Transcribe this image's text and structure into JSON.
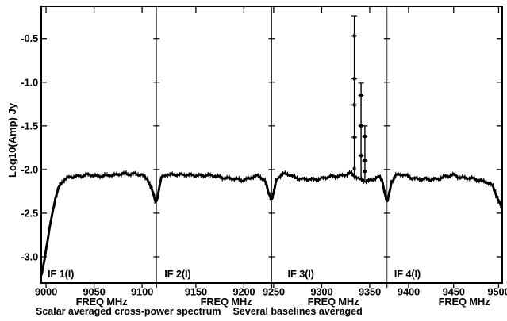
{
  "app": {
    "background": "#ffffff",
    "foreground": "#000000"
  },
  "caption": {
    "left": "Scalar averaged cross-power spectrum",
    "right": "Several baselines averaged"
  },
  "chart_data": {
    "type": "line",
    "title": "",
    "ylabel": "Log10(Amp) Jy",
    "xlabel": "FREQ MHz",
    "ylim": [
      -3.3,
      -0.13
    ],
    "yticks": [
      -0.5,
      -1.0,
      -1.5,
      -2.0,
      -2.5,
      -3.0
    ],
    "grid": false,
    "legend": "none",
    "line_color": "#000000",
    "axis_color": "#000000",
    "continuum_level": -2.08,
    "panels": [
      {
        "label": "IF 1(I)",
        "xlabel": "FREQ MHz",
        "xrange": [
          8995,
          9115
        ],
        "xticks": [
          9000,
          9050,
          9100
        ],
        "curve": [
          [
            8995,
            -3.22
          ],
          [
            8996,
            -3.18
          ],
          [
            8998,
            -3.05
          ],
          [
            9000,
            -2.92
          ],
          [
            9002,
            -2.8
          ],
          [
            9004,
            -2.66
          ],
          [
            9006,
            -2.53
          ],
          [
            9008,
            -2.41
          ],
          [
            9010,
            -2.31
          ],
          [
            9013,
            -2.21
          ],
          [
            9016,
            -2.15
          ],
          [
            9020,
            -2.11
          ],
          [
            9026,
            -2.09
          ],
          [
            9034,
            -2.07
          ],
          [
            9043,
            -2.06
          ],
          [
            9052,
            -2.08
          ],
          [
            9062,
            -2.06
          ],
          [
            9072,
            -2.07
          ],
          [
            9082,
            -2.04
          ],
          [
            9092,
            -2.05
          ],
          [
            9100,
            -2.07
          ],
          [
            9106,
            -2.11
          ],
          [
            9110,
            -2.22
          ],
          [
            9113,
            -2.33
          ],
          [
            9115,
            -2.38
          ]
        ]
      },
      {
        "label": "IF 2(I)",
        "xlabel": "FREQ MHz",
        "xrange": [
          9109,
          9229
        ],
        "xticks": [
          9150,
          9200
        ],
        "curve": [
          [
            9109,
            -2.36
          ],
          [
            9111,
            -2.25
          ],
          [
            9114,
            -2.1
          ],
          [
            9120,
            -2.06
          ],
          [
            9130,
            -2.05
          ],
          [
            9140,
            -2.07
          ],
          [
            9152,
            -2.06
          ],
          [
            9163,
            -2.07
          ],
          [
            9175,
            -2.08
          ],
          [
            9188,
            -2.11
          ],
          [
            9198,
            -2.12
          ],
          [
            9207,
            -2.09
          ],
          [
            9216,
            -2.08
          ],
          [
            9222,
            -2.13
          ],
          [
            9226,
            -2.27
          ],
          [
            9229,
            -2.33
          ]
        ]
      },
      {
        "label": "IF 3(I)",
        "xlabel": "FREQ MHz",
        "xrange": [
          9248,
          9368
        ],
        "xticks": [
          9250,
          9300,
          9350
        ],
        "curve": [
          [
            9248,
            -2.33
          ],
          [
            9250,
            -2.27
          ],
          [
            9253,
            -2.12
          ],
          [
            9258,
            -2.06
          ],
          [
            9266,
            -2.05
          ],
          [
            9273,
            -2.09
          ],
          [
            9281,
            -2.12
          ],
          [
            9291,
            -2.11
          ],
          [
            9302,
            -2.1
          ],
          [
            9313,
            -2.08
          ],
          [
            9322,
            -2.06
          ],
          [
            9330,
            -2.05
          ],
          [
            9335,
            -2.08
          ],
          [
            9339,
            -2.11
          ],
          [
            9344,
            -2.12
          ],
          [
            9349,
            -2.13
          ],
          [
            9355,
            -2.11
          ],
          [
            9360,
            -2.09
          ],
          [
            9363,
            -2.12
          ],
          [
            9366,
            -2.28
          ],
          [
            9368,
            -2.36
          ]
        ],
        "spikes": [
          {
            "x": 9334,
            "top": -0.24,
            "caps": [
              -0.24,
              -0.47,
              -0.96,
              -1.26,
              -1.63
            ],
            "points": [
              -0.47,
              -0.96,
              -1.26,
              -1.63,
              -1.99
            ],
            "base": -2.11
          },
          {
            "x": 9341,
            "top": -1.01,
            "caps": [
              -1.01,
              -1.15,
              -1.5,
              -1.84
            ],
            "points": [
              -1.15,
              -1.5,
              -1.84
            ],
            "base": -2.12
          },
          {
            "x": 9345,
            "top": -1.5,
            "caps": [
              -1.5,
              -1.62,
              -1.9
            ],
            "points": [
              -1.62,
              -1.9,
              -2.02
            ],
            "base": -2.12
          }
        ]
      },
      {
        "label": "IF 4(I)",
        "xlabel": "FREQ MHz",
        "xrange": [
          9376,
          9504
        ],
        "xticks": [
          9400,
          9450,
          9500
        ],
        "curve": [
          [
            9376,
            -2.37
          ],
          [
            9378,
            -2.3
          ],
          [
            9381,
            -2.13
          ],
          [
            9386,
            -2.07
          ],
          [
            9394,
            -2.06
          ],
          [
            9404,
            -2.09
          ],
          [
            9414,
            -2.12
          ],
          [
            9424,
            -2.11
          ],
          [
            9434,
            -2.1
          ],
          [
            9444,
            -2.08
          ],
          [
            9450,
            -2.06
          ],
          [
            9456,
            -2.08
          ],
          [
            9464,
            -2.1
          ],
          [
            9472,
            -2.11
          ],
          [
            9480,
            -2.12
          ],
          [
            9487,
            -2.14
          ],
          [
            9493,
            -2.19
          ],
          [
            9498,
            -2.31
          ],
          [
            9502,
            -2.41
          ],
          [
            9504,
            -2.42
          ]
        ]
      }
    ]
  }
}
